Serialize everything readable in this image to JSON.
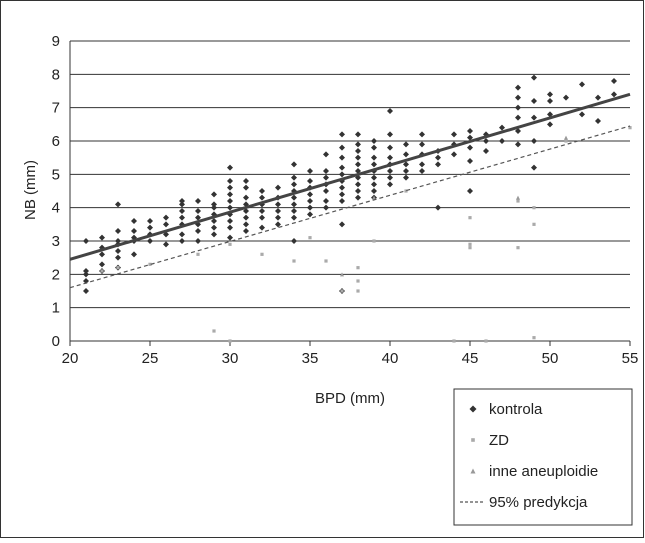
{
  "chart_data": {
    "type": "scatter",
    "title": "",
    "xlabel": "BPD (mm)",
    "ylabel": "NB (mm)",
    "xlim": [
      20,
      55
    ],
    "ylim": [
      0,
      9
    ],
    "x_ticks": [
      20,
      25,
      30,
      35,
      40,
      45,
      50,
      55
    ],
    "y_ticks": [
      0,
      1,
      2,
      3,
      4,
      5,
      6,
      7,
      8,
      9
    ],
    "grid": "horizontal",
    "legend_position": "bottom-right",
    "colors": {
      "kontrola": "#333333",
      "zd": "#aaaaaa",
      "inne": "#999999",
      "regression": "#444444",
      "prediction": "#555555",
      "grid": "#333333"
    },
    "legend": [
      {
        "label": "kontrola",
        "marker": "diamond"
      },
      {
        "label": "ZD",
        "marker": "square"
      },
      {
        "label": "inne aneuploidie",
        "marker": "triangle"
      },
      {
        "label": "95% predykcja",
        "marker": "dashed-line"
      }
    ],
    "series": [
      {
        "name": "kontrola",
        "marker": "diamond",
        "points": [
          [
            21,
            1.5
          ],
          [
            21,
            1.8
          ],
          [
            21,
            2.0
          ],
          [
            21,
            2.1
          ],
          [
            21,
            3.0
          ],
          [
            22,
            2.1
          ],
          [
            22,
            2.3
          ],
          [
            22,
            2.6
          ],
          [
            22,
            2.8
          ],
          [
            22,
            3.1
          ],
          [
            23,
            2.2
          ],
          [
            23,
            2.5
          ],
          [
            23,
            2.7
          ],
          [
            23,
            2.9
          ],
          [
            23,
            3.0
          ],
          [
            23,
            3.3
          ],
          [
            23,
            4.1
          ],
          [
            24,
            2.6
          ],
          [
            24,
            3.0
          ],
          [
            24,
            3.1
          ],
          [
            24,
            3.3
          ],
          [
            24,
            3.6
          ],
          [
            25,
            3.0
          ],
          [
            25,
            3.2
          ],
          [
            25,
            3.4
          ],
          [
            25,
            3.6
          ],
          [
            26,
            2.9
          ],
          [
            26,
            3.2
          ],
          [
            26,
            3.5
          ],
          [
            26,
            3.7
          ],
          [
            27,
            3.0
          ],
          [
            27,
            3.2
          ],
          [
            27,
            3.5
          ],
          [
            27,
            3.7
          ],
          [
            27,
            3.9
          ],
          [
            27,
            4.1
          ],
          [
            27,
            4.2
          ],
          [
            28,
            3.0
          ],
          [
            28,
            3.3
          ],
          [
            28,
            3.5
          ],
          [
            28,
            3.7
          ],
          [
            28,
            3.9
          ],
          [
            28,
            4.2
          ],
          [
            29,
            3.2
          ],
          [
            29,
            3.4
          ],
          [
            29,
            3.6
          ],
          [
            29,
            3.8
          ],
          [
            29,
            4.0
          ],
          [
            29,
            4.1
          ],
          [
            29,
            4.4
          ],
          [
            30,
            3.1
          ],
          [
            30,
            3.4
          ],
          [
            30,
            3.6
          ],
          [
            30,
            3.8
          ],
          [
            30,
            4.0
          ],
          [
            30,
            4.2
          ],
          [
            30,
            4.4
          ],
          [
            30,
            4.6
          ],
          [
            30,
            4.8
          ],
          [
            30,
            5.2
          ],
          [
            31,
            3.3
          ],
          [
            31,
            3.5
          ],
          [
            31,
            3.7
          ],
          [
            31,
            3.9
          ],
          [
            31,
            4.1
          ],
          [
            31,
            4.3
          ],
          [
            31,
            4.6
          ],
          [
            31,
            4.8
          ],
          [
            32,
            3.4
          ],
          [
            32,
            3.7
          ],
          [
            32,
            3.9
          ],
          [
            32,
            4.1
          ],
          [
            32,
            4.3
          ],
          [
            32,
            4.5
          ],
          [
            33,
            3.5
          ],
          [
            33,
            3.7
          ],
          [
            33,
            3.9
          ],
          [
            33,
            4.1
          ],
          [
            33,
            4.3
          ],
          [
            33,
            4.6
          ],
          [
            34,
            3.0
          ],
          [
            34,
            3.7
          ],
          [
            34,
            3.9
          ],
          [
            34,
            4.1
          ],
          [
            34,
            4.3
          ],
          [
            34,
            4.5
          ],
          [
            34,
            4.7
          ],
          [
            34,
            4.9
          ],
          [
            34,
            5.3
          ],
          [
            35,
            3.8
          ],
          [
            35,
            4.0
          ],
          [
            35,
            4.2
          ],
          [
            35,
            4.4
          ],
          [
            35,
            4.6
          ],
          [
            35,
            4.8
          ],
          [
            35,
            5.1
          ],
          [
            36,
            4.0
          ],
          [
            36,
            4.2
          ],
          [
            36,
            4.5
          ],
          [
            36,
            4.7
          ],
          [
            36,
            4.9
          ],
          [
            36,
            5.1
          ],
          [
            36,
            5.6
          ],
          [
            37,
            1.5
          ],
          [
            37,
            3.5
          ],
          [
            37,
            4.2
          ],
          [
            37,
            4.4
          ],
          [
            37,
            4.6
          ],
          [
            37,
            4.8
          ],
          [
            37,
            5.0
          ],
          [
            37,
            5.2
          ],
          [
            37,
            5.5
          ],
          [
            37,
            5.8
          ],
          [
            37,
            6.2
          ],
          [
            38,
            4.3
          ],
          [
            38,
            4.5
          ],
          [
            38,
            4.7
          ],
          [
            38,
            4.9
          ],
          [
            38,
            5.1
          ],
          [
            38,
            5.3
          ],
          [
            38,
            5.5
          ],
          [
            38,
            5.7
          ],
          [
            38,
            5.9
          ],
          [
            38,
            6.2
          ],
          [
            39,
            4.3
          ],
          [
            39,
            4.5
          ],
          [
            39,
            4.7
          ],
          [
            39,
            4.9
          ],
          [
            39,
            5.1
          ],
          [
            39,
            5.3
          ],
          [
            39,
            5.5
          ],
          [
            39,
            5.8
          ],
          [
            39,
            6.0
          ],
          [
            40,
            4.7
          ],
          [
            40,
            4.9
          ],
          [
            40,
            5.1
          ],
          [
            40,
            5.3
          ],
          [
            40,
            5.5
          ],
          [
            40,
            5.8
          ],
          [
            40,
            6.2
          ],
          [
            40,
            6.9
          ],
          [
            41,
            4.9
          ],
          [
            41,
            5.1
          ],
          [
            41,
            5.3
          ],
          [
            41,
            5.6
          ],
          [
            41,
            5.9
          ],
          [
            42,
            5.1
          ],
          [
            42,
            5.3
          ],
          [
            42,
            5.6
          ],
          [
            42,
            5.9
          ],
          [
            42,
            6.2
          ],
          [
            43,
            4.0
          ],
          [
            43,
            5.3
          ],
          [
            43,
            5.5
          ],
          [
            43,
            5.7
          ],
          [
            44,
            5.6
          ],
          [
            44,
            5.9
          ],
          [
            44,
            6.2
          ],
          [
            45,
            4.5
          ],
          [
            45,
            5.4
          ],
          [
            45,
            5.8
          ],
          [
            45,
            6.1
          ],
          [
            45,
            6.3
          ],
          [
            46,
            5.7
          ],
          [
            46,
            6.0
          ],
          [
            46,
            6.2
          ],
          [
            47,
            6.0
          ],
          [
            47,
            6.4
          ],
          [
            48,
            5.9
          ],
          [
            48,
            6.3
          ],
          [
            48,
            6.7
          ],
          [
            48,
            7.0
          ],
          [
            48,
            7.3
          ],
          [
            48,
            7.6
          ],
          [
            49,
            5.2
          ],
          [
            49,
            6.0
          ],
          [
            49,
            6.7
          ],
          [
            49,
            7.2
          ],
          [
            49,
            7.9
          ],
          [
            50,
            6.5
          ],
          [
            50,
            6.8
          ],
          [
            50,
            7.2
          ],
          [
            50,
            7.4
          ],
          [
            51,
            7.3
          ],
          [
            52,
            6.8
          ],
          [
            52,
            7.7
          ],
          [
            53,
            6.6
          ],
          [
            53,
            7.3
          ],
          [
            54,
            7.4
          ],
          [
            54,
            7.8
          ]
        ]
      },
      {
        "name": "ZD",
        "marker": "square",
        "points": [
          [
            22,
            2.1
          ],
          [
            23,
            2.2
          ],
          [
            25,
            2.3
          ],
          [
            28,
            2.6
          ],
          [
            29,
            0.3
          ],
          [
            30,
            0.0
          ],
          [
            30,
            2.9
          ],
          [
            32,
            2.6
          ],
          [
            34,
            2.4
          ],
          [
            35,
            3.1
          ],
          [
            36,
            2.4
          ],
          [
            37,
            1.5
          ],
          [
            38,
            1.5
          ],
          [
            38,
            1.8
          ],
          [
            38,
            2.2
          ],
          [
            39,
            3.0
          ],
          [
            41,
            4.5
          ],
          [
            44,
            0.0
          ],
          [
            45,
            2.8
          ],
          [
            45,
            2.9
          ],
          [
            45,
            3.7
          ],
          [
            46,
            0.0
          ],
          [
            48,
            2.8
          ],
          [
            48,
            4.2
          ],
          [
            49,
            3.5
          ],
          [
            49,
            4.0
          ],
          [
            49,
            0.1
          ],
          [
            51,
            6.0
          ],
          [
            55,
            6.4
          ]
        ]
      },
      {
        "name": "inne aneuploidie",
        "marker": "triangle",
        "points": [
          [
            37,
            2.0
          ],
          [
            39,
            4.3
          ],
          [
            48,
            4.3
          ],
          [
            51,
            6.1
          ]
        ]
      }
    ],
    "regression_line": {
      "x": [
        20,
        55
      ],
      "y": [
        2.45,
        7.4
      ]
    },
    "prediction_line": {
      "x": [
        20,
        55
      ],
      "y": [
        1.6,
        6.45
      ]
    }
  }
}
